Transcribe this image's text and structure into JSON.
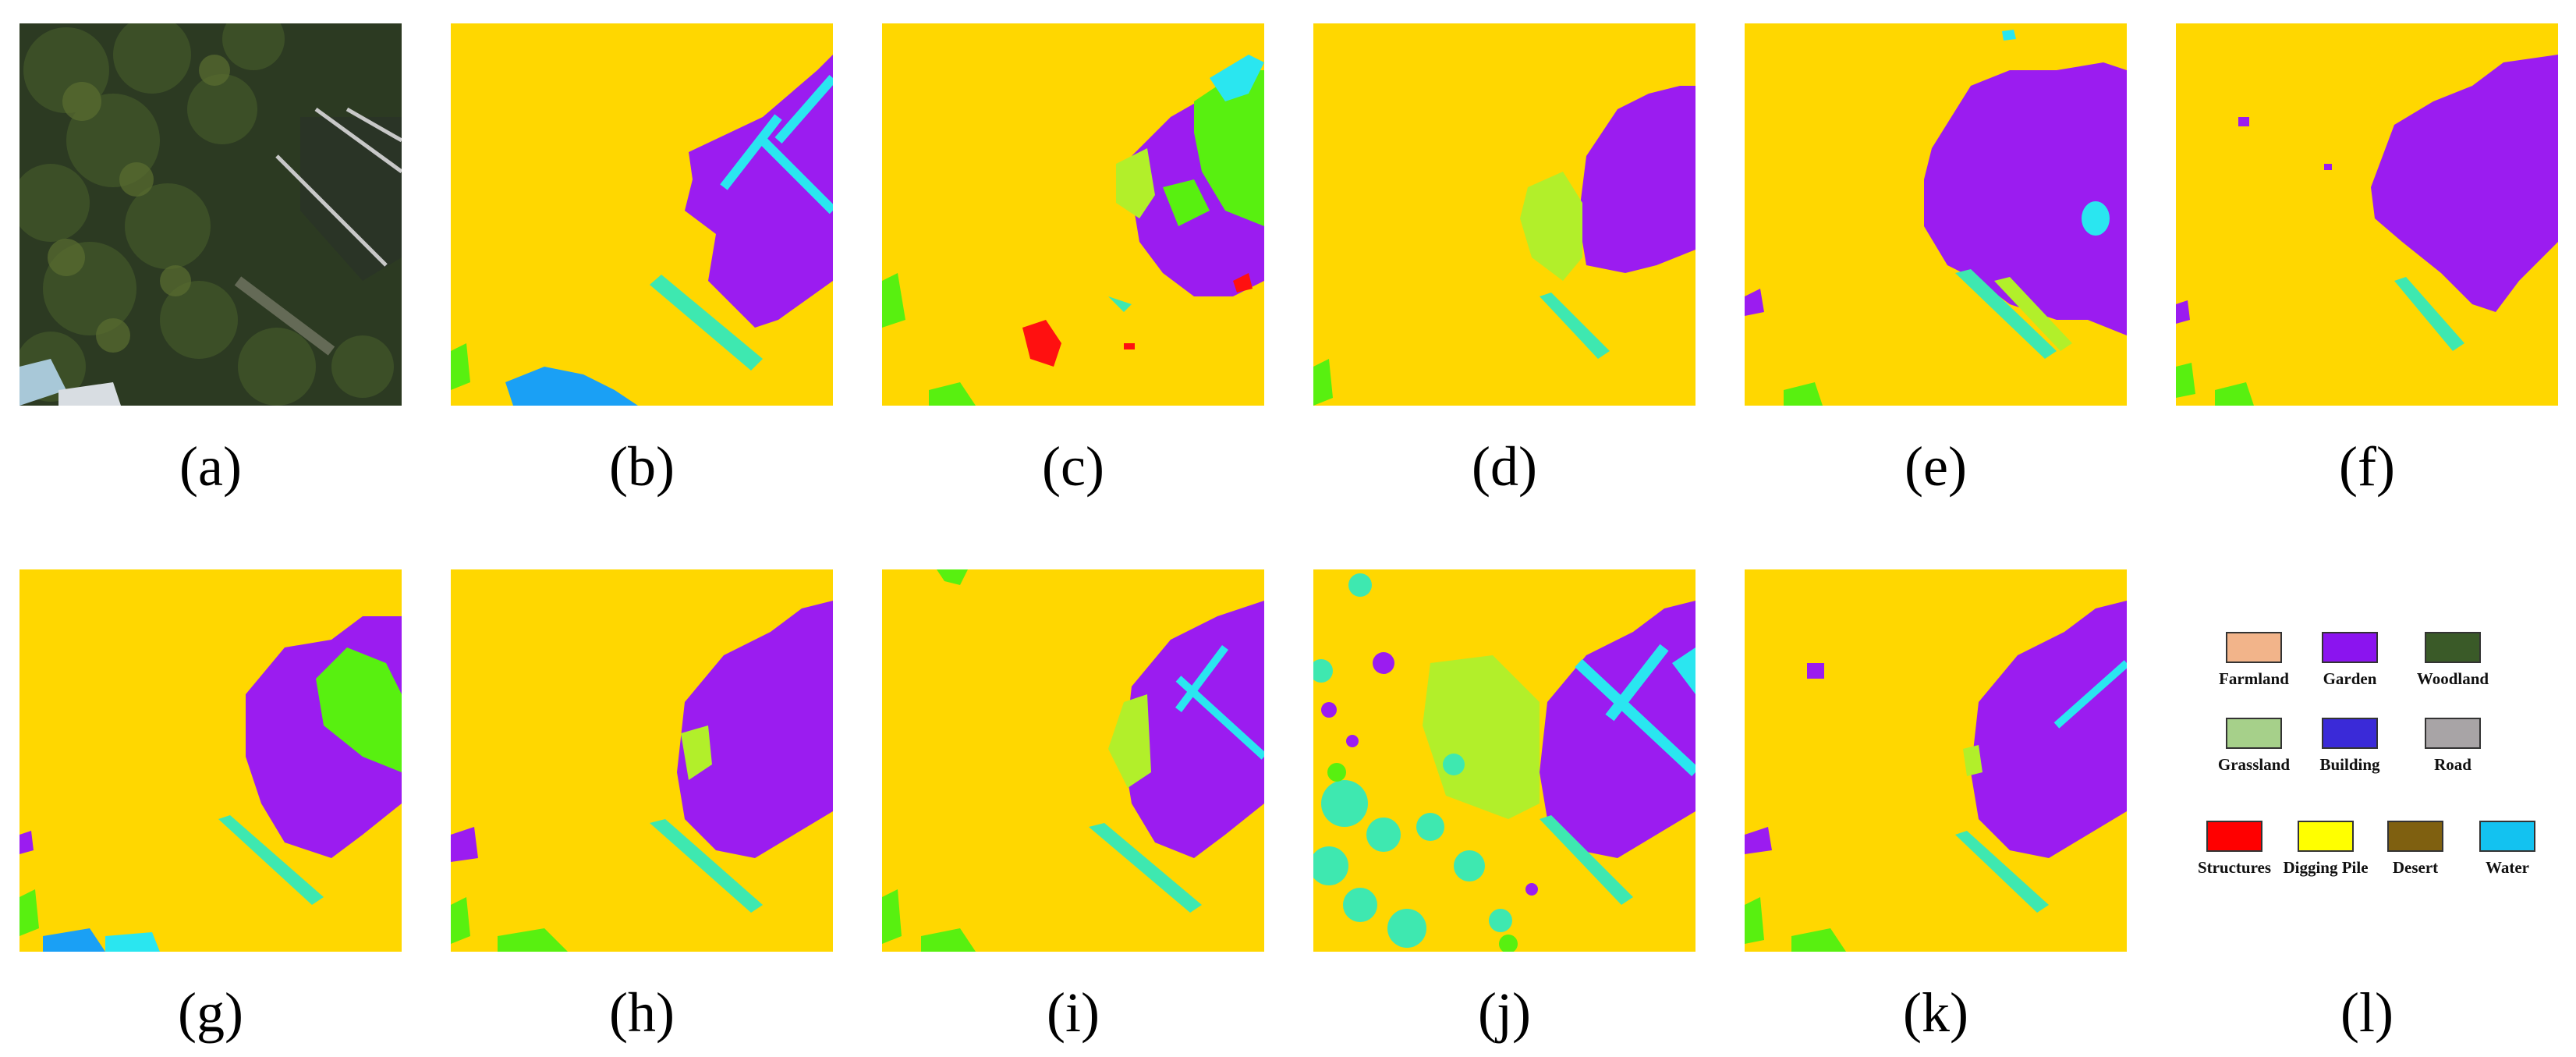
{
  "figure": {
    "panels": [
      {
        "caption": "(a)",
        "kind": "aerial-image"
      },
      {
        "caption": "(b)",
        "kind": "segmentation-map"
      },
      {
        "caption": "(c)",
        "kind": "segmentation-map"
      },
      {
        "caption": "(d)",
        "kind": "segmentation-map"
      },
      {
        "caption": "(e)",
        "kind": "segmentation-map"
      },
      {
        "caption": "(f)",
        "kind": "segmentation-map"
      },
      {
        "caption": "(g)",
        "kind": "segmentation-map"
      },
      {
        "caption": "(h)",
        "kind": "segmentation-map"
      },
      {
        "caption": "(i)",
        "kind": "segmentation-map"
      },
      {
        "caption": "(j)",
        "kind": "segmentation-map"
      },
      {
        "caption": "(k)",
        "kind": "segmentation-map"
      }
    ],
    "legend_caption": "(l)",
    "legend": [
      {
        "label": "Farmland",
        "color": "#f2b48a"
      },
      {
        "label": "Garden",
        "color": "#8b14ef"
      },
      {
        "label": "Woodland",
        "color": "#3a5a28"
      },
      {
        "label": "Grassland",
        "color": "#a6d08a"
      },
      {
        "label": "Building",
        "color": "#3a2ad8"
      },
      {
        "label": "Road",
        "color": "#a8a4a6"
      },
      {
        "label": "Structures",
        "color": "#ff0000"
      },
      {
        "label": "Digging Pile",
        "color": "#ffff00"
      },
      {
        "label": "Desert",
        "color": "#7f6010"
      },
      {
        "label": "Water",
        "color": "#13c2f0"
      }
    ],
    "map_colors": {
      "background": "#ffd700",
      "garden": "#9b1cf0",
      "cyan": "#2ae6f0",
      "teal": "#3ee8b0",
      "lime": "#b2ef2a",
      "green": "#58f010",
      "blue": "#1aa0f5",
      "red": "#ff1010"
    }
  }
}
